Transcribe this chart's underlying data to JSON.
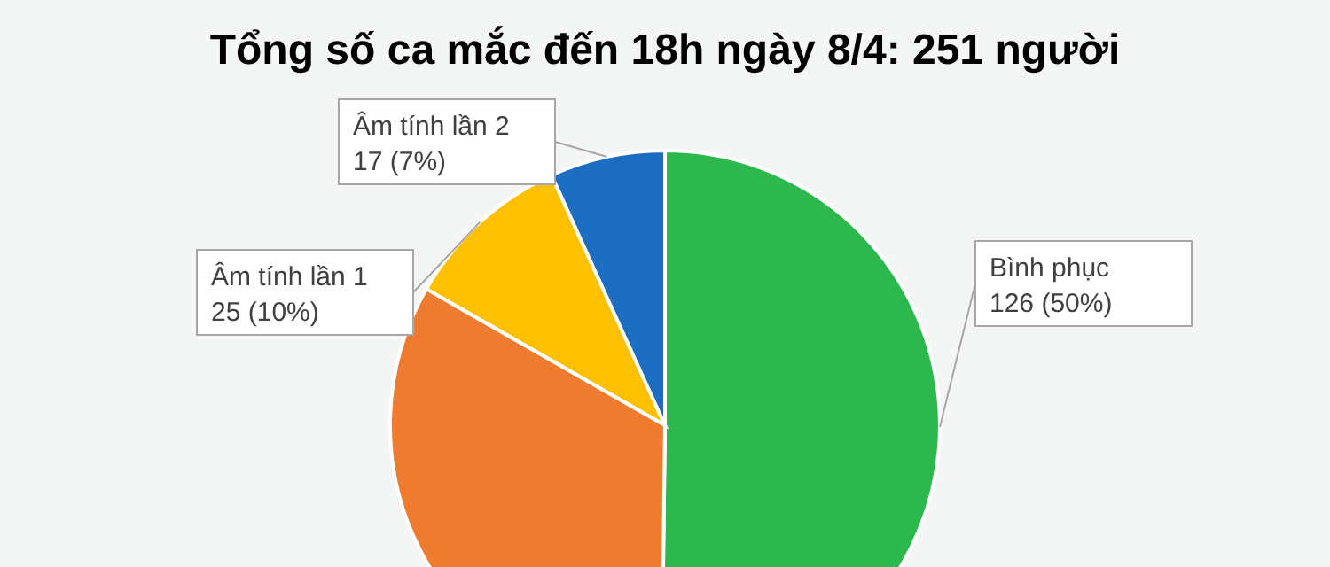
{
  "chart_data": {
    "type": "pie",
    "title": "Tổng số ca mắc đến 18h ngày 8/4: 251 người",
    "categories": [
      "Bình phục",
      null,
      "Âm tính lần 1",
      "Âm tính lần 2"
    ],
    "values": [
      126,
      83,
      25,
      17
    ],
    "colors": [
      "#2db84d",
      "#ef7b30",
      "#ffc000",
      "#1b6ec2"
    ],
    "value_labels": [
      "126 (50%)",
      null,
      "25 (10%)",
      "17 (7%)"
    ]
  }
}
